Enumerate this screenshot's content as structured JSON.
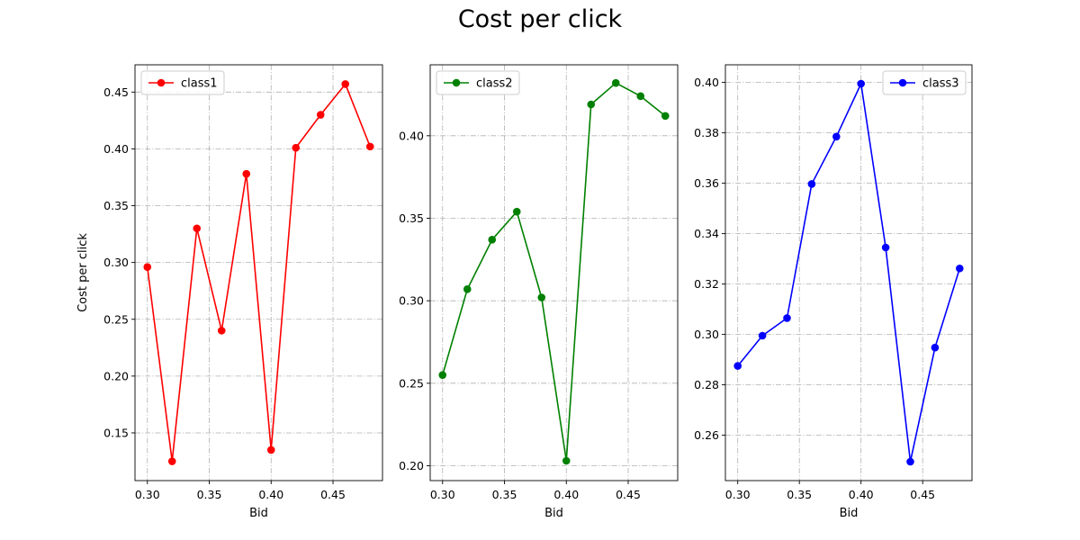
{
  "figure": {
    "title": "Cost per click"
  },
  "chart_data": [
    {
      "type": "line",
      "title": "",
      "xlabel": "Bid",
      "ylabel": "Cost per click",
      "x": [
        0.3,
        0.32,
        0.34,
        0.36,
        0.38,
        0.4,
        0.42,
        0.44,
        0.46,
        0.48
      ],
      "series": [
        {
          "name": "class1",
          "color": "#ff0000",
          "values": [
            0.296,
            0.125,
            0.33,
            0.24,
            0.378,
            0.135,
            0.401,
            0.43,
            0.457,
            0.402
          ]
        }
      ],
      "xlim": [
        0.29,
        0.49
      ],
      "ylim": [
        0.108,
        0.474
      ],
      "xticks": [
        0.3,
        0.35,
        0.4,
        0.45
      ],
      "yticks": [
        0.15,
        0.2,
        0.25,
        0.3,
        0.35,
        0.4,
        0.45
      ],
      "tick_decimals": 2,
      "grid": true,
      "legend_position": "top-left",
      "marker": "circle"
    },
    {
      "type": "line",
      "title": "",
      "xlabel": "Bid",
      "ylabel": "",
      "x": [
        0.3,
        0.32,
        0.34,
        0.36,
        0.38,
        0.4,
        0.42,
        0.44,
        0.46,
        0.48
      ],
      "series": [
        {
          "name": "class2",
          "color": "#008000",
          "values": [
            0.255,
            0.307,
            0.337,
            0.354,
            0.302,
            0.203,
            0.419,
            0.432,
            0.424,
            0.412
          ]
        }
      ],
      "xlim": [
        0.29,
        0.49
      ],
      "ylim": [
        0.191,
        0.443
      ],
      "xticks": [
        0.3,
        0.35,
        0.4,
        0.45
      ],
      "yticks": [
        0.2,
        0.25,
        0.3,
        0.35,
        0.4
      ],
      "tick_decimals": 2,
      "grid": true,
      "legend_position": "top-left",
      "marker": "circle"
    },
    {
      "type": "line",
      "title": "",
      "xlabel": "Bid",
      "ylabel": "",
      "x": [
        0.3,
        0.32,
        0.34,
        0.36,
        0.38,
        0.4,
        0.42,
        0.44,
        0.46,
        0.48
      ],
      "series": [
        {
          "name": "class3",
          "color": "#0000ff",
          "values": [
            0.2875,
            0.2995,
            0.3065,
            0.3597,
            0.3785,
            0.3995,
            0.3345,
            0.2495,
            0.2948,
            0.3262
          ]
        }
      ],
      "xlim": [
        0.29,
        0.49
      ],
      "ylim": [
        0.242,
        0.407
      ],
      "xticks": [
        0.3,
        0.35,
        0.4,
        0.45
      ],
      "yticks": [
        0.26,
        0.28,
        0.3,
        0.32,
        0.34,
        0.36,
        0.38,
        0.4
      ],
      "tick_decimals": 2,
      "grid": true,
      "legend_position": "top-right",
      "marker": "circle"
    }
  ]
}
